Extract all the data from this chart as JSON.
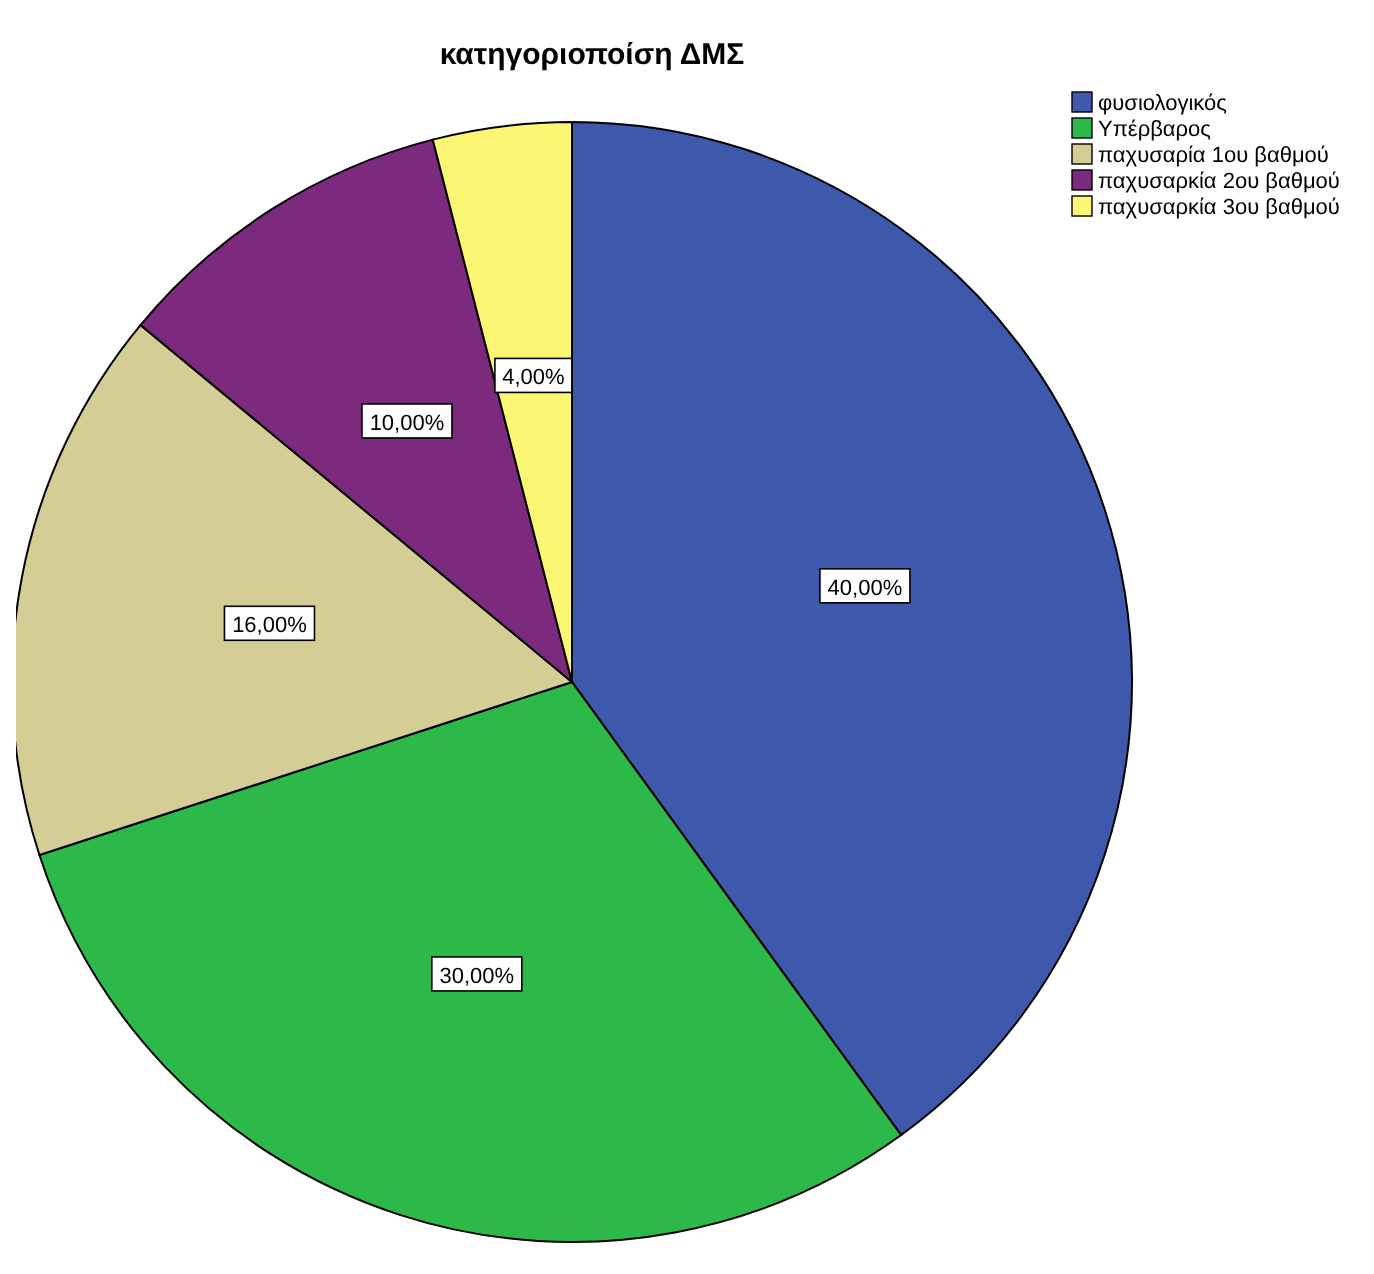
{
  "chart_data": {
    "type": "pie",
    "title": "κατηγοριοποίση  ΔΜΣ",
    "categories": [
      "φυσιολογικός",
      "Υπέρβαρος",
      "παχυσαρία 1ου βαθμού",
      "παχυσαρκία 2ου βαθμού",
      "παχυσαρκία 3ου βαθμού"
    ],
    "values": [
      40,
      30,
      16,
      10,
      4
    ],
    "colors": [
      "#3e58ac",
      "#2db94a",
      "#d4cd96",
      "#7b2a7e",
      "#fbf774"
    ],
    "value_labels": [
      "40,00%",
      "30,00%",
      "16,00%",
      "10,00%",
      "4,00%"
    ],
    "legend": "top right"
  }
}
